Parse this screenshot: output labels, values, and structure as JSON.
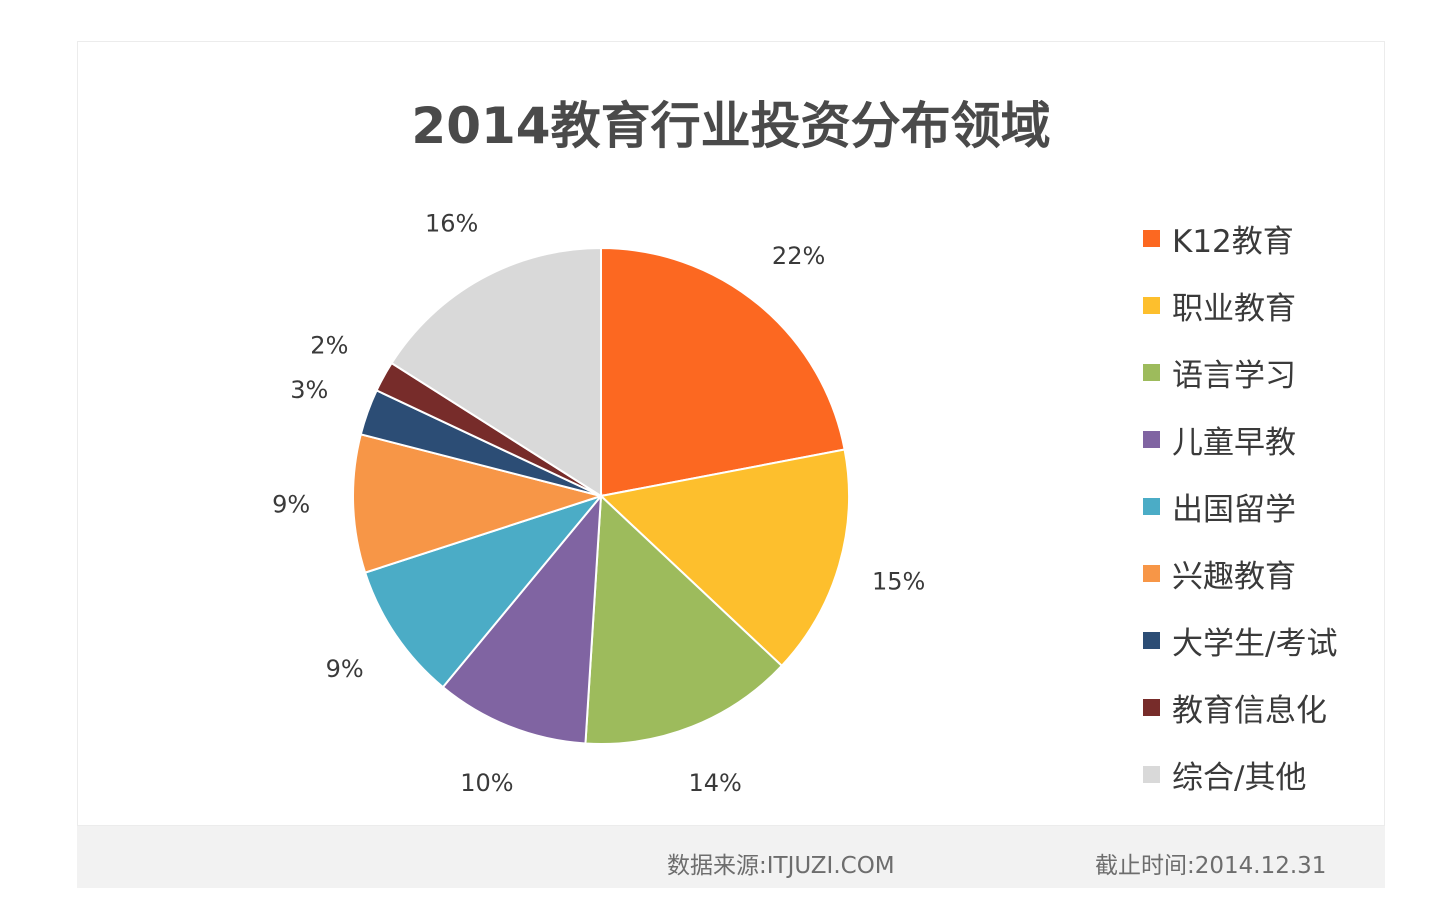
{
  "chart_data": {
    "type": "pie",
    "title": "2014教育行业投资分布领域",
    "categories": [
      "K12教育",
      "职业教育",
      "语言学习",
      "儿童早教",
      "出国留学",
      "兴趣教育",
      "大学生/考试",
      "教育信息化",
      "综合/其他"
    ],
    "values": [
      22,
      15,
      14,
      10,
      9,
      9,
      3,
      2,
      16
    ],
    "value_labels": [
      "22%",
      "15%",
      "14%",
      "10%",
      "9%",
      "9%",
      "3%",
      "2%",
      "16%"
    ],
    "colors": [
      "#fc6821",
      "#fdbf2d",
      "#9dbb5c",
      "#8064a2",
      "#4bacc6",
      "#f79647",
      "#2c4d75",
      "#772c2a",
      "#d9d9d9"
    ],
    "legend_position": "right"
  },
  "footer": {
    "source": "数据来源:ITJUZI.COM",
    "date": "截止时间:2014.12.31"
  }
}
